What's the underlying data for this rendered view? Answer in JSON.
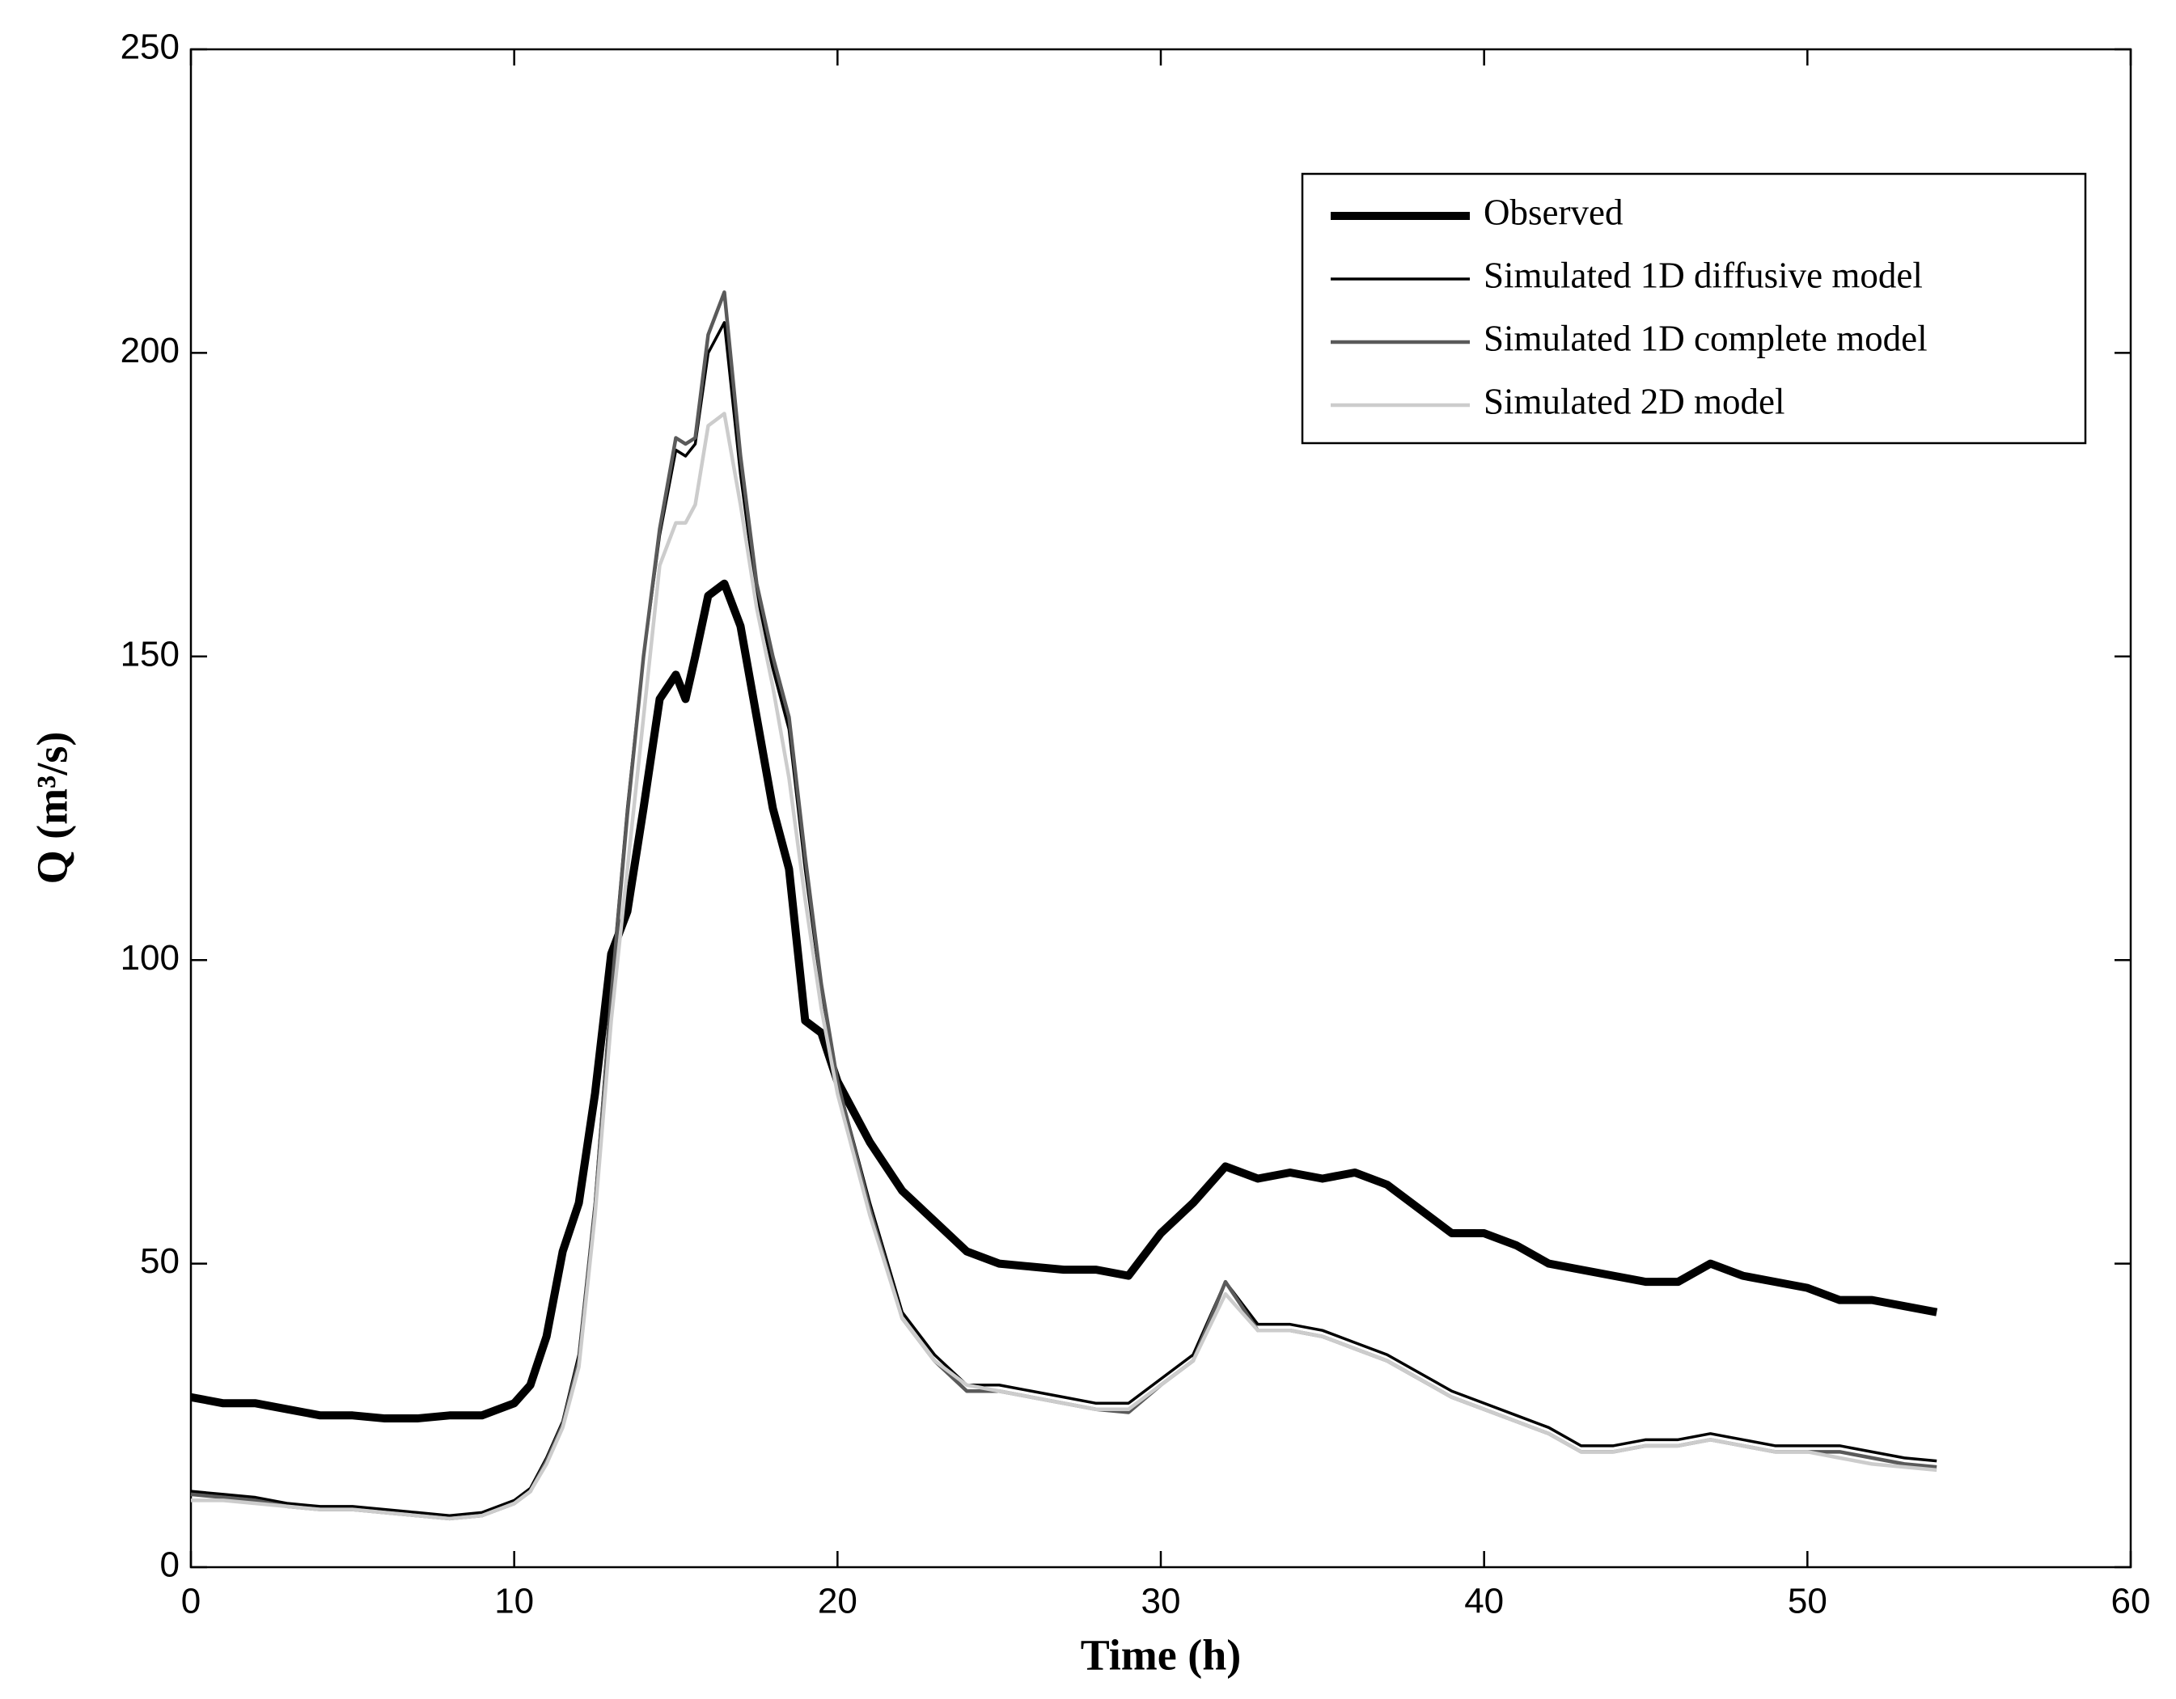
{
  "chart_data": {
    "type": "line",
    "xlabel": "Time (h)",
    "ylabel": "Q (m³/s)",
    "x": [
      0,
      1,
      2,
      3,
      4,
      5,
      6,
      7,
      8,
      9,
      10,
      10.5,
      11,
      11.5,
      12,
      12.5,
      13,
      13.5,
      14,
      14.5,
      15,
      15.3,
      15.6,
      16,
      16.5,
      17,
      17.5,
      18,
      18.5,
      19,
      19.5,
      20,
      21,
      22,
      23,
      24,
      25,
      26,
      27,
      28,
      29,
      30,
      31,
      32,
      33,
      34,
      35,
      36,
      37,
      38,
      39,
      40,
      41,
      42,
      43,
      44,
      45,
      46,
      47,
      48,
      49,
      50,
      51,
      52,
      53,
      54
    ],
    "series": [
      {
        "name": "Observed",
        "color": "#000000",
        "width": 10,
        "values": [
          28,
          27,
          27,
          26,
          25,
          25,
          24.5,
          24.5,
          25,
          25,
          27,
          30,
          38,
          52,
          60,
          78,
          101,
          108,
          125,
          143,
          147,
          143,
          150,
          160,
          162,
          155,
          140,
          125,
          115,
          90,
          88,
          80,
          70,
          62,
          57,
          52,
          50,
          49.5,
          49,
          49,
          48,
          55,
          60,
          66,
          64,
          65,
          64,
          65,
          63,
          59,
          55,
          55,
          53,
          50,
          49,
          48,
          47,
          47,
          50,
          48,
          47,
          46,
          44,
          44,
          43,
          42
        ]
      },
      {
        "name": "Simulated 1D diffusive model",
        "color": "#000000",
        "width": 3.5,
        "values": [
          12.5,
          12,
          11.5,
          10.5,
          10,
          10,
          9.5,
          9,
          8.5,
          9,
          11,
          13,
          18,
          24,
          35,
          60,
          95,
          125,
          150,
          170,
          184,
          183,
          185,
          200,
          205,
          180,
          160,
          148,
          138,
          115,
          95,
          80,
          60,
          42,
          35,
          30,
          30,
          29,
          28,
          27,
          27,
          31,
          35,
          47,
          40,
          40,
          39,
          37,
          35,
          32,
          29,
          27,
          25,
          23,
          20,
          20,
          21,
          21,
          22,
          21,
          20,
          20,
          20,
          19,
          18,
          17.5
        ]
      },
      {
        "name": "Simulated 1D complete model",
        "color": "#5a5a5a",
        "width": 4.5,
        "values": [
          12,
          11.5,
          11,
          10,
          9.5,
          9.5,
          9,
          8.5,
          8,
          8.5,
          10.5,
          12.5,
          17.5,
          23.5,
          34,
          59,
          94,
          124,
          150,
          171,
          186,
          185,
          186,
          203,
          210,
          183,
          162,
          150,
          140,
          117,
          96,
          80,
          59,
          41,
          34,
          29,
          29,
          28,
          27,
          26,
          25.5,
          30,
          34,
          47,
          39,
          39,
          38,
          36,
          34,
          31,
          28,
          26,
          24,
          22,
          19,
          19,
          20,
          20,
          21,
          20,
          19,
          19,
          19,
          18,
          17,
          16.5
        ]
      },
      {
        "name": "Simulated 2D model",
        "color": "#cccccc",
        "width": 4.5,
        "values": [
          11,
          11,
          10.5,
          10,
          9.5,
          9.5,
          9,
          8.5,
          8,
          8.5,
          10.5,
          12.5,
          17,
          23,
          33,
          58,
          90,
          115,
          140,
          165,
          172,
          172,
          175,
          188,
          190,
          175,
          158,
          145,
          130,
          110,
          92,
          78,
          58,
          41,
          34,
          30,
          29,
          28,
          27,
          26,
          26,
          30,
          34,
          45,
          39,
          39,
          38,
          36,
          34,
          31,
          28,
          26,
          24,
          22,
          19,
          19,
          20,
          20,
          21,
          20,
          19,
          19,
          18,
          17,
          16.5,
          16
        ]
      }
    ],
    "xlim": [
      0,
      60
    ],
    "xticks": [
      0,
      10,
      20,
      30,
      40,
      50,
      60
    ],
    "ylim": [
      0,
      250
    ],
    "yticks": [
      0,
      50,
      100,
      150,
      200,
      250
    ],
    "legend": "upper right",
    "grid": false
  }
}
